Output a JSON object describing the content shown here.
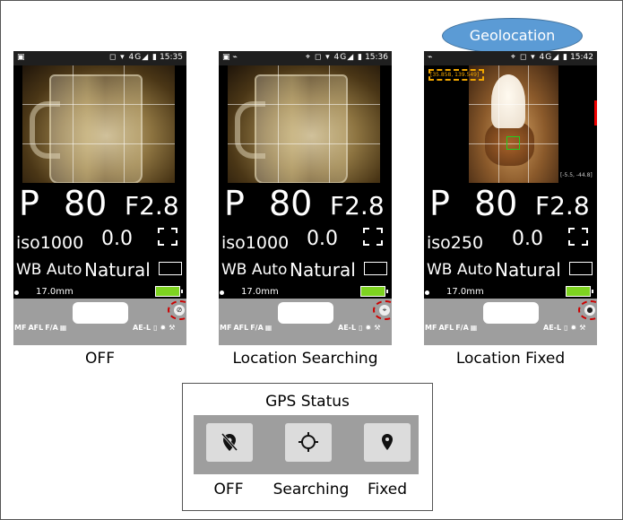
{
  "callout": {
    "label": "Geolocation"
  },
  "screens": [
    {
      "status_time": "15:35",
      "network": "4G",
      "mode": "P",
      "shutter": "80",
      "aperture": "F2.8",
      "iso": "iso1000",
      "ev": "0.0",
      "wb": "WB Auto",
      "picture_style": "Natural",
      "focal_length": "17.0mm",
      "left_controls": [
        "MF",
        "AFL",
        "F/A"
      ],
      "right_controls": [
        "AE-L"
      ],
      "caption": "OFF"
    },
    {
      "status_time": "15:36",
      "network": "4G",
      "mode": "P",
      "shutter": "80",
      "aperture": "F2.8",
      "iso": "iso1000",
      "ev": "0.0",
      "wb": "WB Auto",
      "picture_style": "Natural",
      "focal_length": "17.0mm",
      "left_controls": [
        "MF",
        "AFL",
        "F/A"
      ],
      "right_controls": [
        "AE-L"
      ],
      "caption": "Location Searching"
    },
    {
      "status_time": "15:42",
      "network": "4G",
      "mode": "P",
      "shutter": "80",
      "aperture": "F2.8",
      "iso": "iso250",
      "ev": "0.0",
      "wb": "WB Auto",
      "picture_style": "Natural",
      "focal_length": "17.0mm",
      "left_controls": [
        "MF",
        "AFL",
        "F/A"
      ],
      "right_controls": [
        "AE-L"
      ],
      "coords": "[35.858, 139.549]",
      "orientation": "[-5.5, -44.8]",
      "caption": "Location Fixed"
    }
  ],
  "gps_legend": {
    "title": "GPS Status",
    "items": [
      "OFF",
      "Searching",
      "Fixed"
    ]
  }
}
